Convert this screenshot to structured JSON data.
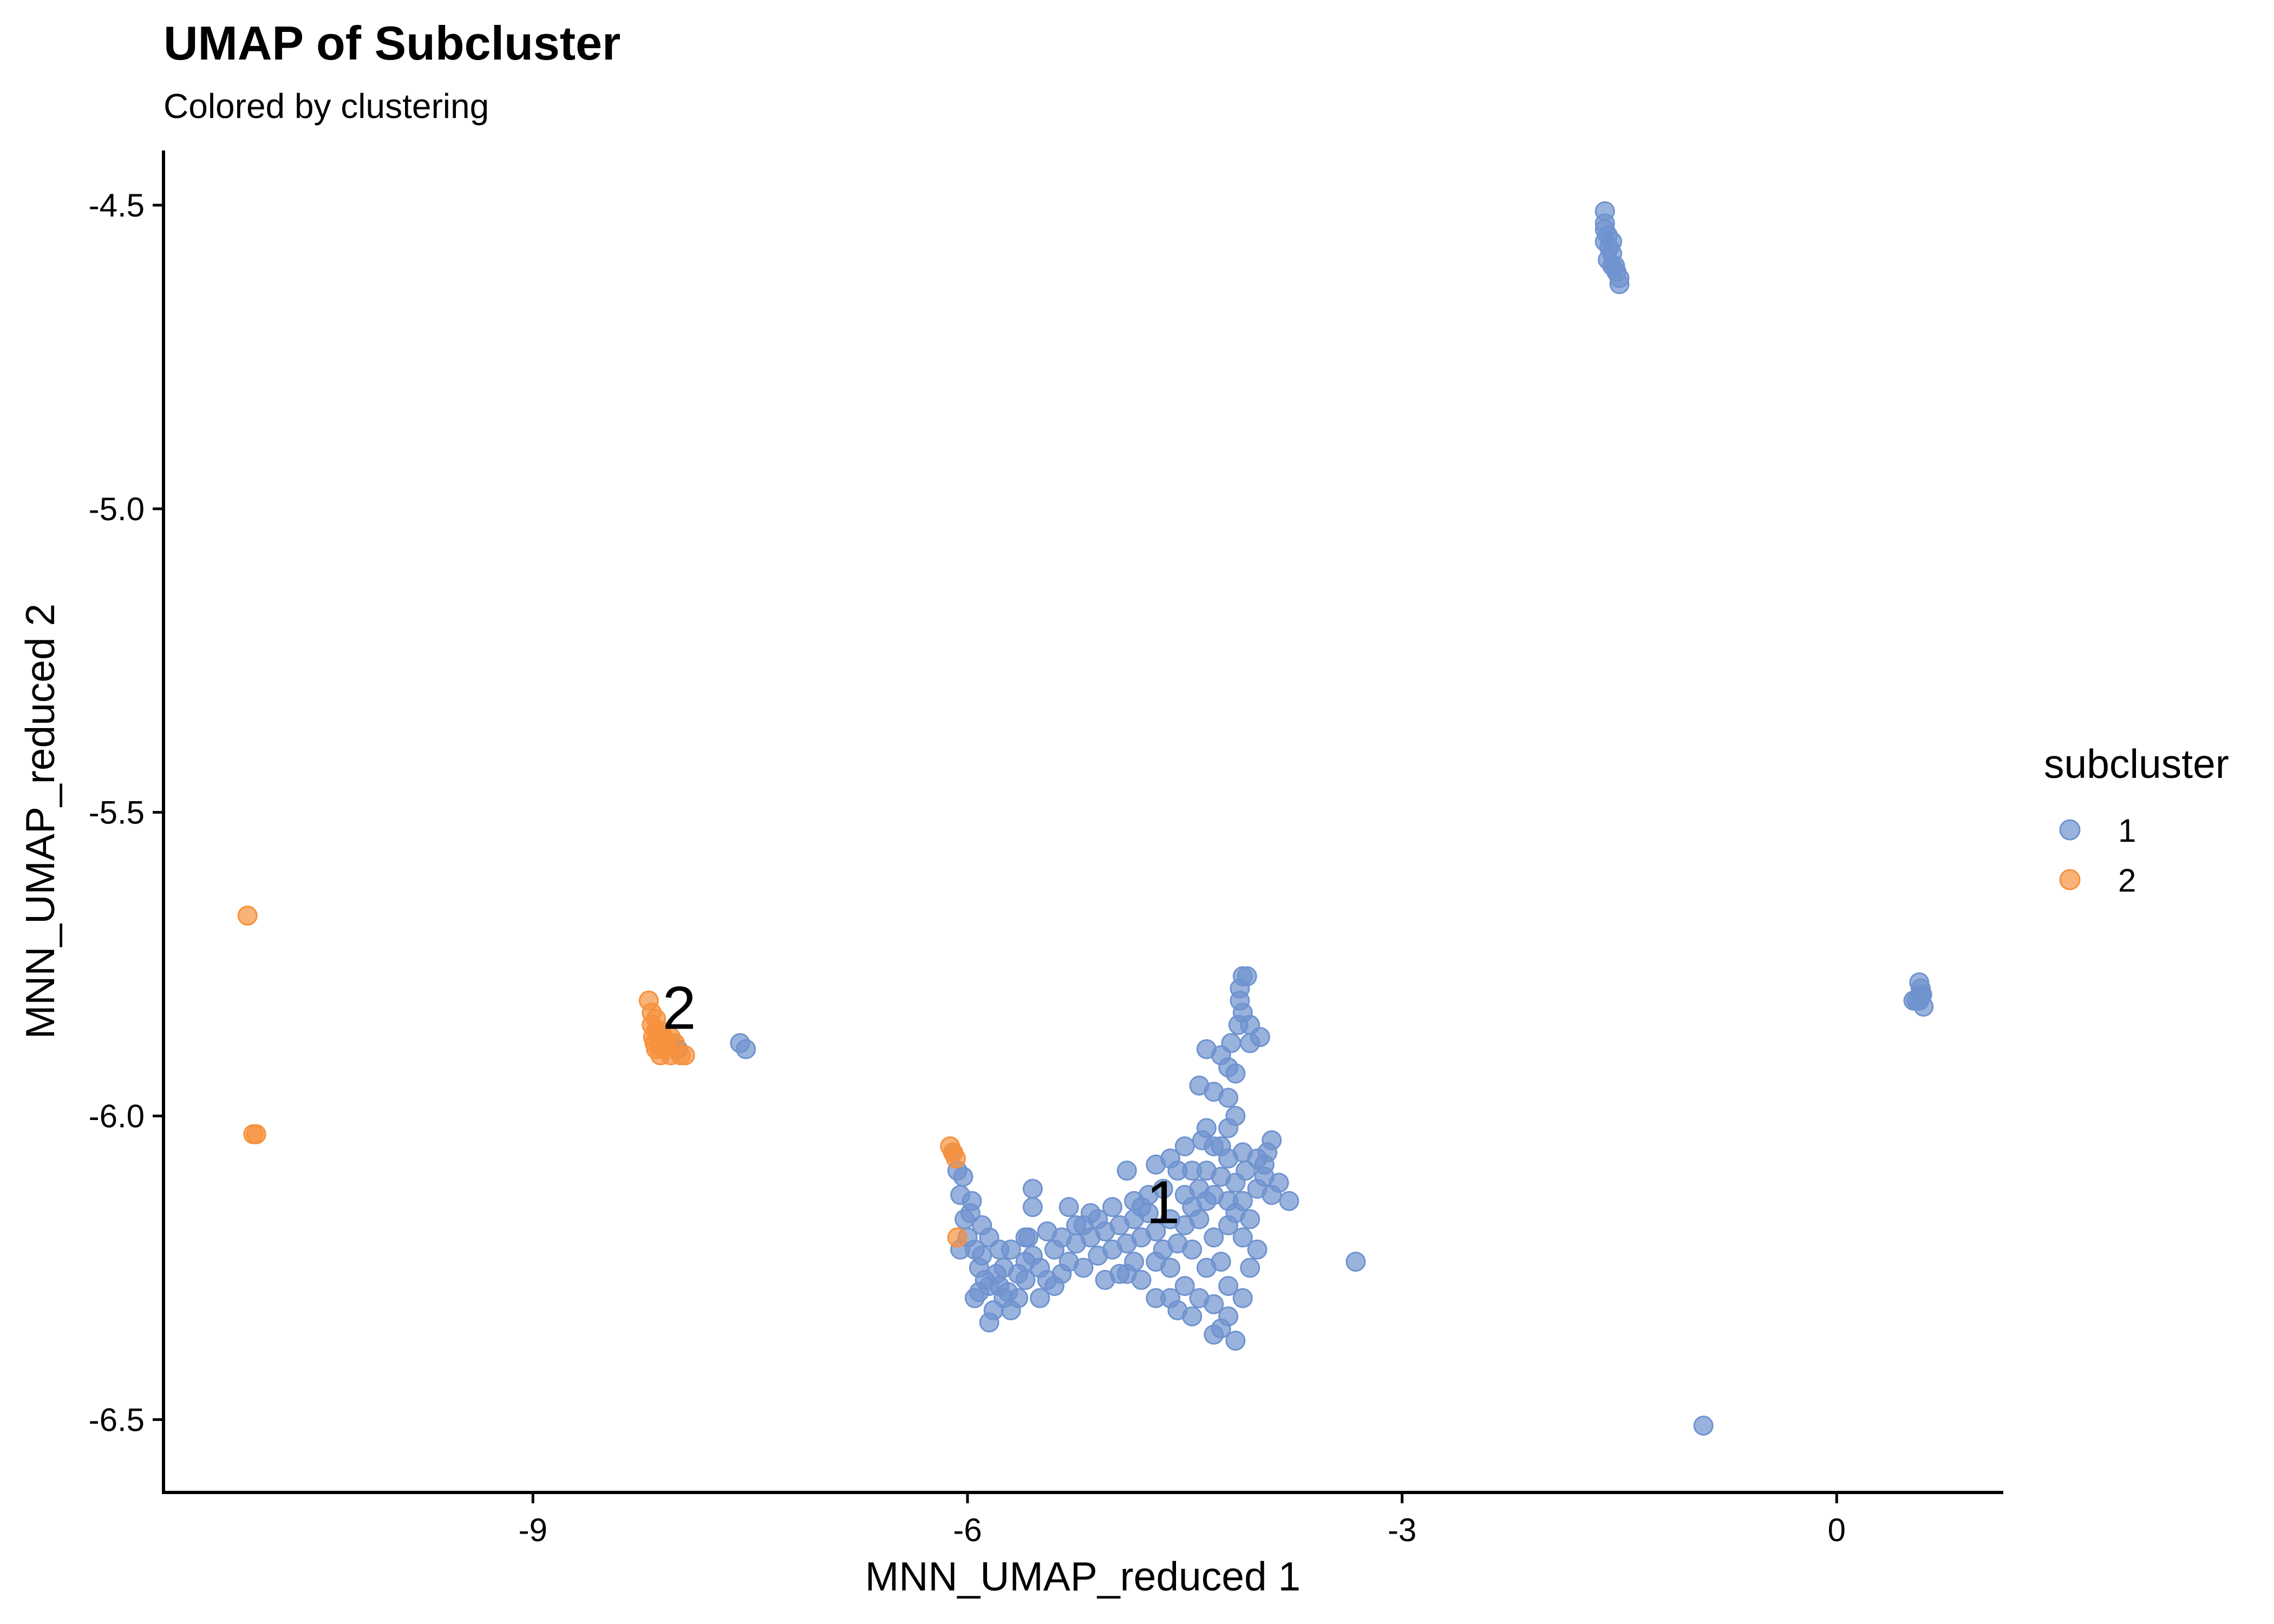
{
  "chart_data": {
    "type": "scatter",
    "title": "UMAP of Subcluster",
    "subtitle": "Colored by clustering",
    "xlabel": "MNN_UMAP_reduced 1",
    "ylabel": "MNN_UMAP_reduced 2",
    "xlim": [
      -11.55,
      1.15
    ],
    "ylim": [
      -6.62,
      -4.41
    ],
    "x_ticks": [
      {
        "value": -9,
        "label": "-9"
      },
      {
        "value": -6,
        "label": "-6"
      },
      {
        "value": -3,
        "label": "-3"
      },
      {
        "value": 0,
        "label": "0"
      }
    ],
    "y_ticks": [
      {
        "value": -4.5,
        "label": "-4.5"
      },
      {
        "value": -5.0,
        "label": "-5.0"
      },
      {
        "value": -5.5,
        "label": "-5.5"
      },
      {
        "value": -6.0,
        "label": "-6.0"
      },
      {
        "value": -6.5,
        "label": "-6.5"
      }
    ],
    "grid": false,
    "legend": {
      "title": "subcluster",
      "position": "right",
      "entries": [
        {
          "label": "1",
          "color": "#6f93cf"
        },
        {
          "label": "2",
          "color": "#f7913d"
        }
      ]
    },
    "cluster_labels": [
      {
        "text": "1",
        "x": -4.65,
        "y": -6.15
      },
      {
        "text": "2",
        "x": -7.99,
        "y": -5.83
      }
    ],
    "series": [
      {
        "name": "1",
        "color": "#6f93cf",
        "points": [
          [
            -1.6,
            -4.51
          ],
          [
            -1.6,
            -4.53
          ],
          [
            -1.58,
            -4.55
          ],
          [
            -1.6,
            -4.56
          ],
          [
            -1.57,
            -4.57
          ],
          [
            -1.55,
            -4.58
          ],
          [
            -1.58,
            -4.59
          ],
          [
            -1.55,
            -4.6
          ],
          [
            -1.52,
            -4.61
          ],
          [
            -1.5,
            -4.62
          ],
          [
            -1.5,
            -4.63
          ],
          [
            -1.53,
            -4.6
          ],
          [
            -1.6,
            -4.54
          ],
          [
            -1.55,
            -4.56
          ],
          [
            0.57,
            -5.78
          ],
          [
            0.58,
            -5.79
          ],
          [
            0.59,
            -5.8
          ],
          [
            0.57,
            -5.81
          ],
          [
            0.6,
            -5.82
          ],
          [
            0.55,
            -5.81
          ],
          [
            0.53,
            -5.81
          ],
          [
            0.58,
            -5.8
          ],
          [
            -0.92,
            -6.51
          ],
          [
            -3.32,
            -6.24
          ],
          [
            -7.57,
            -5.88
          ],
          [
            -7.53,
            -5.89
          ],
          [
            -8.05,
            -5.88
          ],
          [
            -8.0,
            -5.89
          ],
          [
            -6.1,
            -6.06
          ],
          [
            -6.07,
            -6.09
          ],
          [
            -6.05,
            -6.13
          ],
          [
            -6.02,
            -6.17
          ],
          [
            -6.05,
            -6.22
          ],
          [
            -6.0,
            -6.2
          ],
          [
            -5.98,
            -6.16
          ],
          [
            -5.95,
            -6.22
          ],
          [
            -5.92,
            -6.25
          ],
          [
            -5.9,
            -6.23
          ],
          [
            -5.95,
            -6.3
          ],
          [
            -5.85,
            -6.28
          ],
          [
            -5.82,
            -6.32
          ],
          [
            -5.85,
            -6.34
          ],
          [
            -5.78,
            -6.28
          ],
          [
            -5.75,
            -6.25
          ],
          [
            -5.72,
            -6.29
          ],
          [
            -5.7,
            -6.22
          ],
          [
            -5.65,
            -6.26
          ],
          [
            -5.6,
            -6.27
          ],
          [
            -5.55,
            -6.23
          ],
          [
            -5.5,
            -6.25
          ],
          [
            -5.45,
            -6.27
          ],
          [
            -5.4,
            -6.22
          ],
          [
            -5.35,
            -6.26
          ],
          [
            -5.3,
            -6.24
          ],
          [
            -5.25,
            -6.21
          ],
          [
            -5.2,
            -6.25
          ],
          [
            -5.15,
            -6.2
          ],
          [
            -5.1,
            -6.23
          ],
          [
            -5.05,
            -6.19
          ],
          [
            -5.0,
            -6.22
          ],
          [
            -4.95,
            -6.18
          ],
          [
            -4.9,
            -6.21
          ],
          [
            -4.85,
            -6.17
          ],
          [
            -4.8,
            -6.2
          ],
          [
            -4.75,
            -6.16
          ],
          [
            -4.7,
            -6.19
          ],
          [
            -4.65,
            -6.22
          ],
          [
            -4.6,
            -6.25
          ],
          [
            -4.55,
            -6.21
          ],
          [
            -4.5,
            -6.18
          ],
          [
            -4.45,
            -6.15
          ],
          [
            -4.4,
            -6.12
          ],
          [
            -4.35,
            -6.09
          ],
          [
            -4.3,
            -6.13
          ],
          [
            -4.25,
            -6.1
          ],
          [
            -4.2,
            -6.07
          ],
          [
            -4.15,
            -6.11
          ],
          [
            -4.1,
            -6.14
          ],
          [
            -4.05,
            -6.17
          ],
          [
            -4.0,
            -6.12
          ],
          [
            -3.95,
            -6.08
          ],
          [
            -3.9,
            -6.04
          ],
          [
            -3.85,
            -6.11
          ],
          [
            -3.78,
            -6.14
          ],
          [
            -4.1,
            -6.06
          ],
          [
            -4.2,
            -6.02
          ],
          [
            -4.3,
            -6.05
          ],
          [
            -4.35,
            -5.89
          ],
          [
            -4.25,
            -5.9
          ],
          [
            -4.2,
            -5.92
          ],
          [
            -4.3,
            -5.96
          ],
          [
            -4.4,
            -5.95
          ],
          [
            -4.15,
            -5.93
          ],
          [
            -4.05,
            -5.88
          ],
          [
            -3.98,
            -5.87
          ],
          [
            -4.05,
            -5.85
          ],
          [
            -4.12,
            -5.81
          ],
          [
            -4.12,
            -5.79
          ],
          [
            -4.1,
            -5.77
          ],
          [
            -4.07,
            -5.77
          ],
          [
            -4.1,
            -5.83
          ],
          [
            -4.13,
            -5.85
          ],
          [
            -4.18,
            -5.88
          ],
          [
            -4.2,
            -5.97
          ],
          [
            -4.15,
            -6.0
          ],
          [
            -4.35,
            -6.02
          ],
          [
            -4.5,
            -6.05
          ],
          [
            -4.6,
            -6.07
          ],
          [
            -4.7,
            -6.08
          ],
          [
            -4.9,
            -6.09
          ],
          [
            -5.3,
            -6.15
          ],
          [
            -5.55,
            -6.12
          ],
          [
            -5.55,
            -6.15
          ],
          [
            -5.6,
            -6.2
          ],
          [
            -4.2,
            -6.28
          ],
          [
            -4.3,
            -6.31
          ],
          [
            -4.4,
            -6.3
          ],
          [
            -4.5,
            -6.28
          ],
          [
            -4.6,
            -6.3
          ],
          [
            -4.7,
            -6.3
          ],
          [
            -4.8,
            -6.27
          ],
          [
            -4.9,
            -6.26
          ],
          [
            -4.25,
            -6.35
          ],
          [
            -4.2,
            -6.33
          ],
          [
            -4.15,
            -6.37
          ],
          [
            -4.3,
            -6.36
          ],
          [
            -4.1,
            -6.3
          ],
          [
            -4.05,
            -6.25
          ],
          [
            -4.0,
            -6.22
          ],
          [
            -4.45,
            -6.33
          ],
          [
            -4.55,
            -6.32
          ],
          [
            -4.35,
            -6.25
          ],
          [
            -4.45,
            -6.22
          ],
          [
            -4.3,
            -6.2
          ],
          [
            -4.2,
            -6.18
          ],
          [
            -4.1,
            -6.2
          ],
          [
            -4.25,
            -6.24
          ],
          [
            -5.2,
            -6.18
          ],
          [
            -5.1,
            -6.17
          ],
          [
            -4.85,
            -6.24
          ],
          [
            -4.95,
            -6.26
          ],
          [
            -5.05,
            -6.27
          ],
          [
            -4.7,
            -6.24
          ],
          [
            -4.6,
            -6.17
          ],
          [
            -4.75,
            -6.13
          ],
          [
            -4.85,
            -6.14
          ],
          [
            -4.4,
            -6.17
          ],
          [
            -4.5,
            -6.13
          ],
          [
            -4.35,
            -6.14
          ],
          [
            -4.2,
            -6.14
          ],
          [
            -4.45,
            -6.09
          ],
          [
            -4.15,
            -6.16
          ],
          [
            -5.35,
            -6.2
          ],
          [
            -5.4,
            -6.28
          ],
          [
            -5.65,
            -6.3
          ],
          [
            -5.8,
            -6.26
          ],
          [
            -5.88,
            -6.27
          ],
          [
            -5.92,
            -6.29
          ],
          [
            -5.75,
            -6.3
          ],
          [
            -5.7,
            -6.32
          ],
          [
            -5.6,
            -6.24
          ],
          [
            -5.5,
            -6.3
          ],
          [
            -4.0,
            -6.07
          ],
          [
            -3.95,
            -6.1
          ],
          [
            -3.9,
            -6.13
          ],
          [
            -4.08,
            -6.09
          ],
          [
            -3.93,
            -6.06
          ],
          [
            -4.25,
            -6.05
          ],
          [
            -4.38,
            -6.04
          ],
          [
            -4.55,
            -6.09
          ],
          [
            -4.65,
            -6.12
          ],
          [
            -4.8,
            -6.15
          ],
          [
            -5.0,
            -6.15
          ],
          [
            -5.15,
            -6.16
          ],
          [
            -5.25,
            -6.18
          ],
          [
            -5.45,
            -6.19
          ],
          [
            -5.58,
            -6.2
          ],
          [
            -5.78,
            -6.22
          ],
          [
            -5.85,
            -6.2
          ],
          [
            -5.9,
            -6.18
          ],
          [
            -5.97,
            -6.14
          ],
          [
            -6.03,
            -6.1
          ]
        ]
      },
      {
        "name": "2",
        "color": "#f7913d",
        "points": [
          [
            -10.97,
            -5.67
          ],
          [
            -10.93,
            -6.03
          ],
          [
            -10.91,
            -6.03
          ],
          [
            -8.2,
            -5.81
          ],
          [
            -8.18,
            -5.83
          ],
          [
            -8.15,
            -5.84
          ],
          [
            -8.18,
            -5.85
          ],
          [
            -8.15,
            -5.86
          ],
          [
            -8.12,
            -5.86
          ],
          [
            -8.17,
            -5.87
          ],
          [
            -8.13,
            -5.88
          ],
          [
            -8.1,
            -5.87
          ],
          [
            -8.08,
            -5.88
          ],
          [
            -8.15,
            -5.89
          ],
          [
            -8.12,
            -5.9
          ],
          [
            -8.1,
            -5.89
          ],
          [
            -8.05,
            -5.87
          ],
          [
            -8.05,
            -5.9
          ],
          [
            -7.98,
            -5.9
          ],
          [
            -7.95,
            -5.9
          ],
          [
            -8.02,
            -5.88
          ],
          [
            -8.16,
            -5.88
          ],
          [
            -6.12,
            -6.05
          ],
          [
            -6.1,
            -6.06
          ],
          [
            -6.08,
            -6.07
          ],
          [
            -6.07,
            -6.2
          ]
        ]
      }
    ]
  }
}
